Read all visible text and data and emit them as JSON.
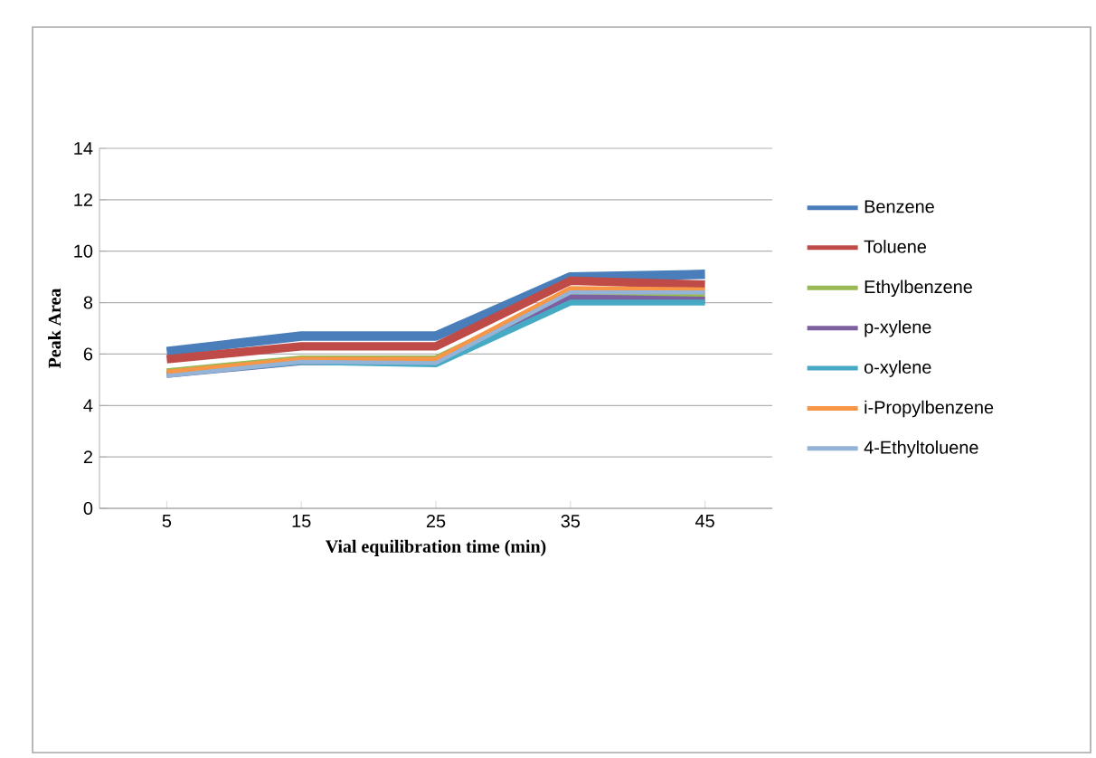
{
  "chart_data": {
    "type": "line",
    "xlabel": "Vial equilibration time (min)",
    "ylabel": "Peak Area",
    "categories": [
      "5",
      "15",
      "25",
      "35",
      "45"
    ],
    "ylim": [
      0,
      14
    ],
    "yticks": [
      0,
      2,
      4,
      6,
      8,
      10,
      12,
      14
    ],
    "grid": "y",
    "legend": "right",
    "marker": "none",
    "line_style": "solid",
    "series": [
      {
        "name": "Benzene",
        "color": "#4a7ebb",
        "values": [
          6.1,
          6.7,
          6.7,
          9.0,
          9.1
        ]
      },
      {
        "name": "Toluene",
        "color": "#be4b48",
        "values": [
          5.8,
          6.3,
          6.3,
          8.85,
          8.7
        ]
      },
      {
        "name": "Ethylbenzene",
        "color": "#98b954",
        "values": [
          5.3,
          5.8,
          5.8,
          8.3,
          8.3
        ]
      },
      {
        "name": "p-xylene",
        "color": "#7d60a0",
        "values": [
          5.2,
          5.7,
          5.7,
          8.2,
          8.1
        ]
      },
      {
        "name": "o-xylene",
        "color": "#46aac5",
        "values": [
          5.2,
          5.7,
          5.6,
          8.0,
          8.0
        ]
      },
      {
        "name": "i-Propylbenzene",
        "color": "#f79646",
        "values": [
          5.3,
          5.8,
          5.8,
          8.55,
          8.5
        ]
      },
      {
        "name": "4-Ethyltoluene",
        "color": "#95b3d7",
        "values": [
          5.15,
          5.7,
          5.65,
          8.4,
          8.4
        ]
      }
    ]
  }
}
